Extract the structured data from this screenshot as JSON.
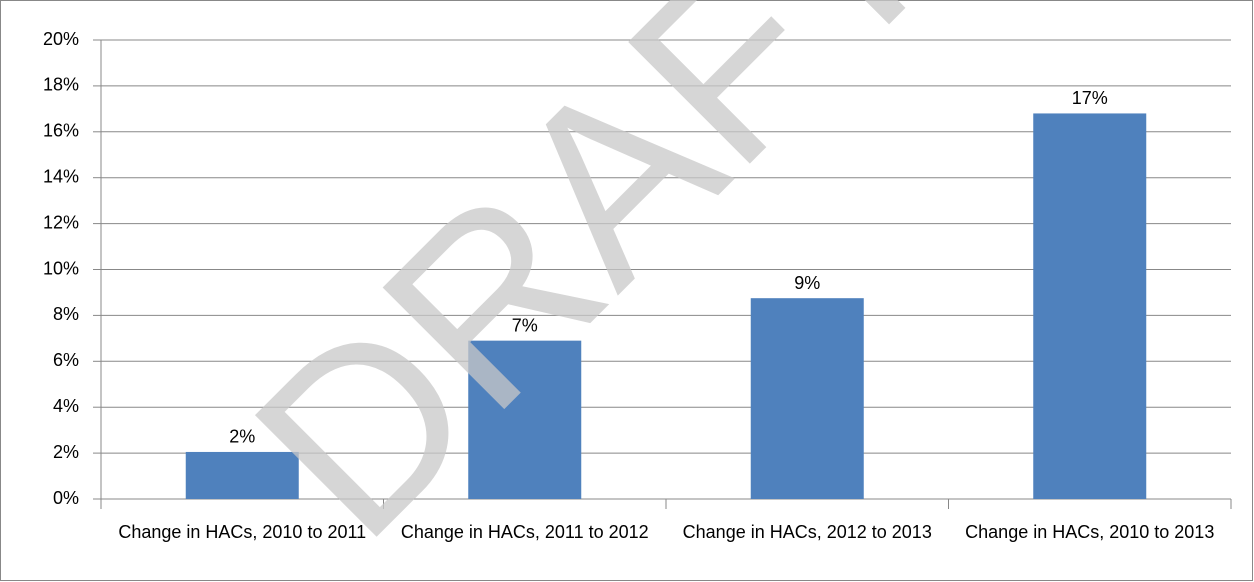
{
  "chart_data": {
    "type": "bar",
    "watermark": "DRAFT",
    "categories": [
      "Change in HACs, 2010 to 2011",
      "Change in HACs, 2011 to 2012",
      "Change in HACs, 2012 to 2013",
      "Change in HACs, 2010 to 2013"
    ],
    "values": [
      2.05,
      6.9,
      8.75,
      16.8
    ],
    "value_labels": [
      "2%",
      "7%",
      "9%",
      "17%"
    ],
    "color": "#4f81bd",
    "ylim": [
      0,
      20
    ],
    "yticks": [
      {
        "value": 0,
        "label": "0%"
      },
      {
        "value": 2,
        "label": "2%"
      },
      {
        "value": 4,
        "label": "4%"
      },
      {
        "value": 6,
        "label": "6%"
      },
      {
        "value": 8,
        "label": "8%"
      },
      {
        "value": 10,
        "label": "10%"
      },
      {
        "value": 12,
        "label": "12%"
      },
      {
        "value": 14,
        "label": "14%"
      },
      {
        "value": 16,
        "label": "16%"
      },
      {
        "value": 18,
        "label": "18%"
      },
      {
        "value": 20,
        "label": "20%"
      }
    ],
    "grid": true
  }
}
